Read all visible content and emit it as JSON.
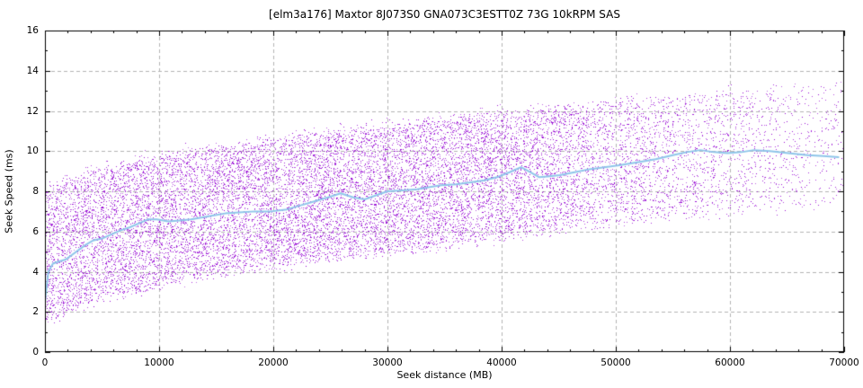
{
  "chart_data": {
    "type": "scatter",
    "title": "[elm3a176] Maxtor 8J073S0 GNA073C3ESTT0Z 73G 10kRPM SAS",
    "xlabel": "Seek distance (MB)",
    "ylabel": "Seek Speed (ms)",
    "xlim": [
      0,
      70000
    ],
    "ylim": [
      0,
      16
    ],
    "x_ticks": [
      0,
      10000,
      20000,
      30000,
      40000,
      50000,
      60000,
      70000
    ],
    "y_ticks": [
      0,
      2,
      4,
      6,
      8,
      10,
      12,
      14,
      16
    ],
    "x_minor_step": 2000,
    "y_minor_step": 1,
    "grid": true,
    "legend_position": "none",
    "colors": {
      "background": "#ffffff",
      "text": "#000000",
      "axis": "#000000",
      "grid": "#b3b3b3",
      "points": "#9400d3",
      "trend": "#8fc6ea"
    },
    "series": [
      {
        "name": "seek samples",
        "kind": "scatter-cloud",
        "color": "#9400d3",
        "model": {
          "n_points": 17000,
          "seed": 1234,
          "edge_noise_ms": 0.18,
          "lower_envelope": [
            [
              0,
              1.4
            ],
            [
              2000,
              2.1
            ],
            [
              5000,
              2.7
            ],
            [
              10000,
              3.3
            ],
            [
              15000,
              3.9
            ],
            [
              20000,
              4.3
            ],
            [
              25000,
              4.65
            ],
            [
              30000,
              4.95
            ],
            [
              35000,
              5.3
            ],
            [
              40000,
              5.7
            ],
            [
              45000,
              6.1
            ],
            [
              50000,
              6.4
            ],
            [
              55000,
              6.7
            ],
            [
              60000,
              6.9
            ],
            [
              65000,
              7.1
            ],
            [
              70000,
              7.3
            ]
          ],
          "upper_envelope": [
            [
              0,
              8.0
            ],
            [
              2000,
              8.6
            ],
            [
              5000,
              9.2
            ],
            [
              10000,
              9.8
            ],
            [
              15000,
              10.2
            ],
            [
              20000,
              10.6
            ],
            [
              25000,
              11.0
            ],
            [
              30000,
              11.3
            ],
            [
              35000,
              11.7
            ],
            [
              40000,
              12.0
            ],
            [
              45000,
              12.2
            ],
            [
              50000,
              12.45
            ],
            [
              55000,
              12.7
            ],
            [
              60000,
              13.0
            ],
            [
              65000,
              13.2
            ],
            [
              70000,
              13.45
            ]
          ],
          "x_density": [
            [
              0,
              1
            ],
            [
              35000,
              1
            ],
            [
              42000,
              0.85
            ],
            [
              50000,
              0.55
            ],
            [
              57000,
              0.38
            ],
            [
              63000,
              0.25
            ],
            [
              70000,
              0.12
            ]
          ]
        }
      },
      {
        "name": "moving average",
        "kind": "line",
        "color": "#8fc6ea",
        "width": 2,
        "points": [
          [
            0,
            2.5
          ],
          [
            300,
            4.0
          ],
          [
            700,
            4.4
          ],
          [
            1200,
            4.5
          ],
          [
            1800,
            4.6
          ],
          [
            2400,
            4.85
          ],
          [
            3000,
            5.1
          ],
          [
            3600,
            5.35
          ],
          [
            4200,
            5.55
          ],
          [
            5000,
            5.65
          ],
          [
            5800,
            5.85
          ],
          [
            6600,
            6.05
          ],
          [
            7400,
            6.2
          ],
          [
            8200,
            6.4
          ],
          [
            9000,
            6.6
          ],
          [
            9800,
            6.6
          ],
          [
            10800,
            6.5
          ],
          [
            11800,
            6.55
          ],
          [
            12800,
            6.6
          ],
          [
            13800,
            6.7
          ],
          [
            14800,
            6.8
          ],
          [
            15800,
            6.9
          ],
          [
            17000,
            6.95
          ],
          [
            18400,
            7.0
          ],
          [
            19800,
            7.0
          ],
          [
            21200,
            7.1
          ],
          [
            22400,
            7.3
          ],
          [
            23600,
            7.5
          ],
          [
            24800,
            7.7
          ],
          [
            25900,
            7.9
          ],
          [
            27000,
            7.7
          ],
          [
            28000,
            7.6
          ],
          [
            29000,
            7.8
          ],
          [
            30000,
            8.0
          ],
          [
            31300,
            8.05
          ],
          [
            32600,
            8.1
          ],
          [
            33600,
            8.2
          ],
          [
            34700,
            8.3
          ],
          [
            36000,
            8.35
          ],
          [
            37300,
            8.45
          ],
          [
            38500,
            8.55
          ],
          [
            39600,
            8.7
          ],
          [
            40700,
            8.95
          ],
          [
            41700,
            9.2
          ],
          [
            42500,
            8.95
          ],
          [
            43300,
            8.7
          ],
          [
            44200,
            8.75
          ],
          [
            45100,
            8.8
          ],
          [
            46400,
            8.95
          ],
          [
            47700,
            9.1
          ],
          [
            49000,
            9.2
          ],
          [
            50300,
            9.3
          ],
          [
            52000,
            9.45
          ],
          [
            53500,
            9.6
          ],
          [
            55000,
            9.8
          ],
          [
            56200,
            9.95
          ],
          [
            57400,
            10.05
          ],
          [
            58600,
            9.95
          ],
          [
            59800,
            9.9
          ],
          [
            61000,
            9.95
          ],
          [
            62100,
            10.05
          ],
          [
            63500,
            10.0
          ],
          [
            65100,
            9.9
          ],
          [
            66800,
            9.8
          ],
          [
            68200,
            9.75
          ],
          [
            69500,
            9.7
          ]
        ]
      }
    ]
  }
}
